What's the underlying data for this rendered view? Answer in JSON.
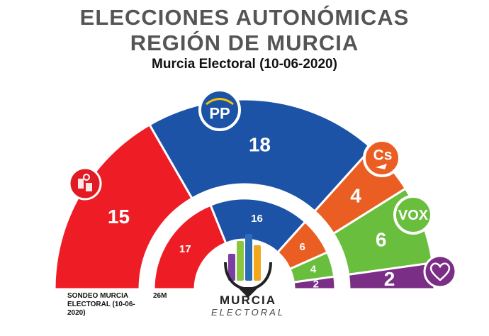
{
  "title_line1": "ELECCIONES AUTONÓMICAS",
  "title_line2": "REGIÓN DE MURCIA",
  "subtitle": "Murcia Electoral (10-06-2020)",
  "footnote_left": "SONDEO MURCIA ELECTORAL (10-06-2020)",
  "footnote_right": "26M",
  "logo": {
    "name": "MURCIA",
    "tagline": "ELECTORAL"
  },
  "badges": {
    "pp": "PP",
    "cs": "Cs",
    "vox": "VOX"
  },
  "chart_data": {
    "type": "pie",
    "style": "semicircle parliament (two rings)",
    "categories": [
      "PSOE",
      "PP",
      "Cs",
      "VOX",
      "Podemos"
    ],
    "colors": [
      "#ee1c25",
      "#1d53a6",
      "#ea5e23",
      "#6abe3d",
      "#7b2e86"
    ],
    "series": [
      {
        "name": "SONDEO MURCIA ELECTORAL (10-06-2020)",
        "values": [
          15,
          18,
          4,
          6,
          2
        ]
      },
      {
        "name": "26M",
        "values": [
          17,
          16,
          6,
          4,
          2
        ]
      }
    ]
  }
}
